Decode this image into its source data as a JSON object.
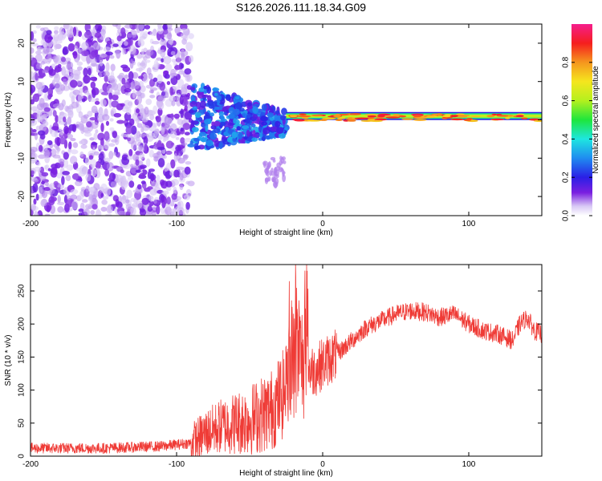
{
  "title": "S126.2026.111.18.34.G09",
  "chart_data": [
    {
      "type": "heatmap",
      "title": "S126.2026.111.18.34.G09",
      "xlabel": "Height of straight line (km)",
      "ylabel": "Frequency (Hz)",
      "xlim": [
        -200,
        150
      ],
      "ylim": [
        -25,
        25
      ],
      "xticks": [
        -200,
        -100,
        0,
        100
      ],
      "yticks": [
        -20,
        -10,
        0,
        10,
        20
      ],
      "colorbar": {
        "label": "Normalized spectral amplitude",
        "range": [
          0,
          1
        ],
        "ticks": [
          "0.0",
          "0.2",
          "0.4",
          "0.6",
          "0.8"
        ],
        "tick_values": [
          0.0,
          0.2,
          0.4,
          0.6,
          0.8
        ]
      },
      "regions": [
        {
          "x": [
            -200,
            -90
          ],
          "description": "scattered noise",
          "freq_range": [
            -25,
            25
          ],
          "amplitude": 0.1
        },
        {
          "x": [
            -90,
            -25
          ],
          "description": "broadening band",
          "freq_range": [
            -8,
            8
          ],
          "amplitude": 0.3
        },
        {
          "x": [
            -25,
            150
          ],
          "description": "narrow tone",
          "freq_center": 1,
          "amplitude": 0.9
        }
      ]
    },
    {
      "type": "line",
      "xlabel": "Height of straight line (km)",
      "ylabel": "SNR (10 * v/v)",
      "xlim": [
        -200,
        150
      ],
      "ylim": [
        0,
        290
      ],
      "xticks": [
        -200,
        -100,
        0,
        100
      ],
      "yticks": [
        0,
        50,
        100,
        150,
        200,
        250
      ],
      "color": "#ef3b36",
      "envelope": {
        "x": [
          -200,
          -150,
          -110,
          -90,
          -80,
          -70,
          -50,
          -35,
          -25,
          -18,
          -15,
          -10,
          -5,
          0,
          10,
          20,
          30,
          40,
          50,
          60,
          70,
          80,
          90,
          100,
          110,
          120,
          130,
          135,
          140,
          145,
          150
        ],
        "y": [
          12,
          12,
          15,
          20,
          35,
          45,
          55,
          70,
          100,
          150,
          150,
          130,
          130,
          140,
          155,
          175,
          195,
          205,
          215,
          220,
          218,
          210,
          215,
          200,
          190,
          185,
          175,
          200,
          210,
          190,
          185
        ]
      }
    }
  ]
}
